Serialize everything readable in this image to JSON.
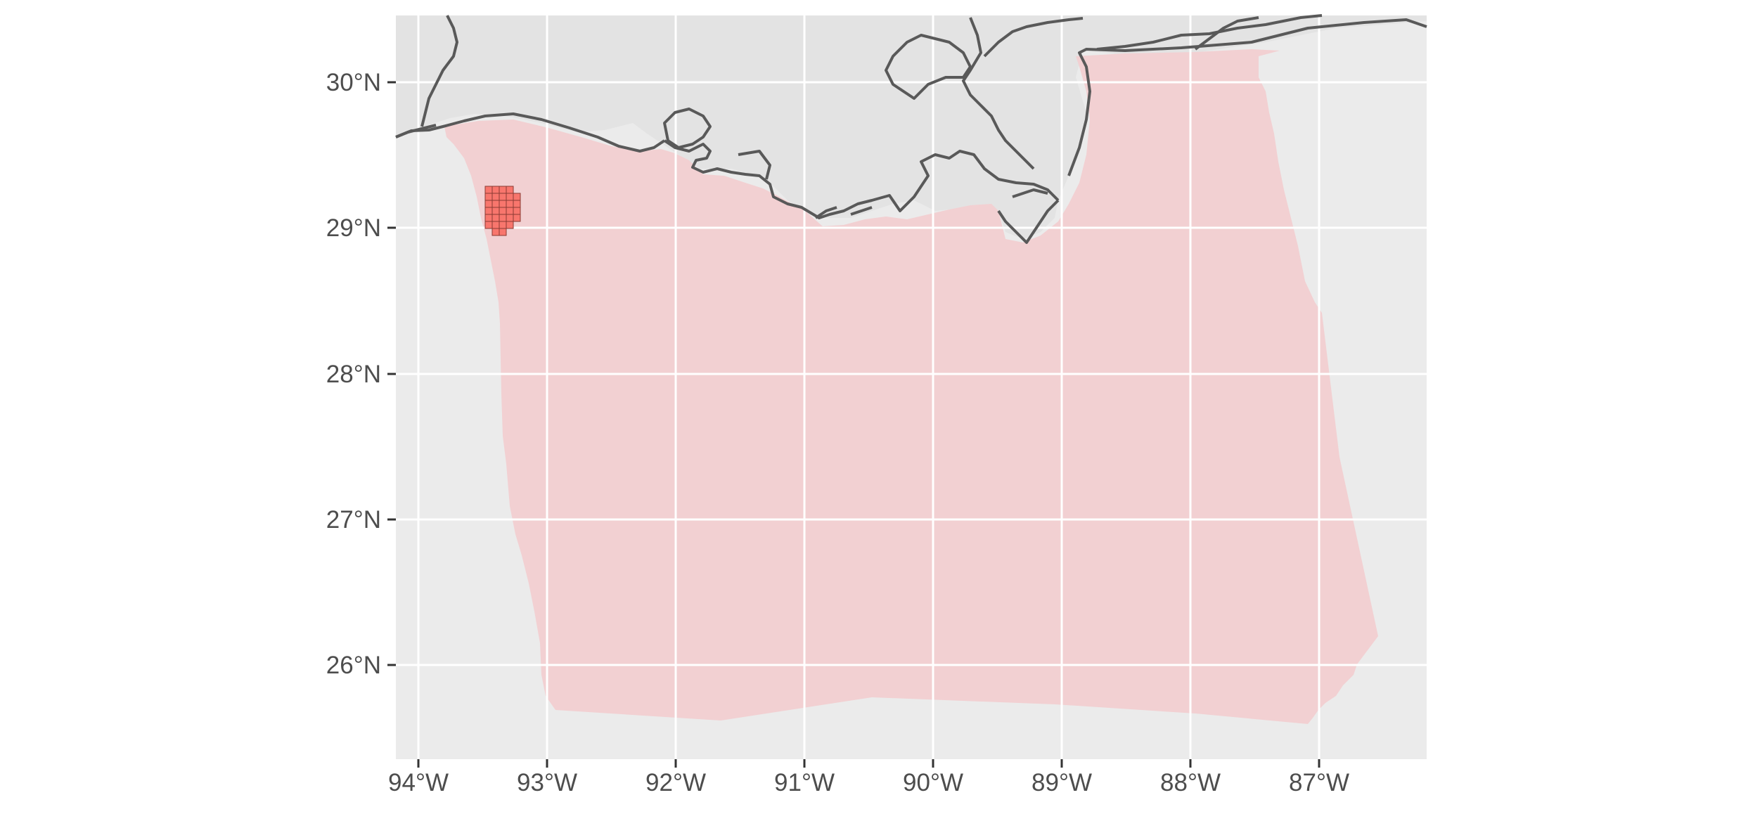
{
  "map": {
    "x_ticks": [
      "94°W",
      "93°W",
      "92°W",
      "91°W",
      "90°W",
      "89°W",
      "88°W",
      "87°W"
    ],
    "y_ticks": [
      "30°N",
      "29°N",
      "28°N",
      "27°N",
      "26°N"
    ],
    "colors": {
      "panel_background": "#ebebeb",
      "land": "#e5e5e5",
      "coastline": "#595959",
      "study_area": "#f4c7cb",
      "grid_cells": "#f8766d",
      "grid_cell_border": "#8a3a33",
      "gridlines": "#ffffff",
      "tick_text": "#4d4d4d"
    },
    "layers": [
      {
        "id": "land",
        "description_type": "landmass"
      },
      {
        "id": "study-area",
        "description_type": "polygon"
      },
      {
        "id": "grid-cells",
        "description_type": "raster"
      }
    ]
  }
}
